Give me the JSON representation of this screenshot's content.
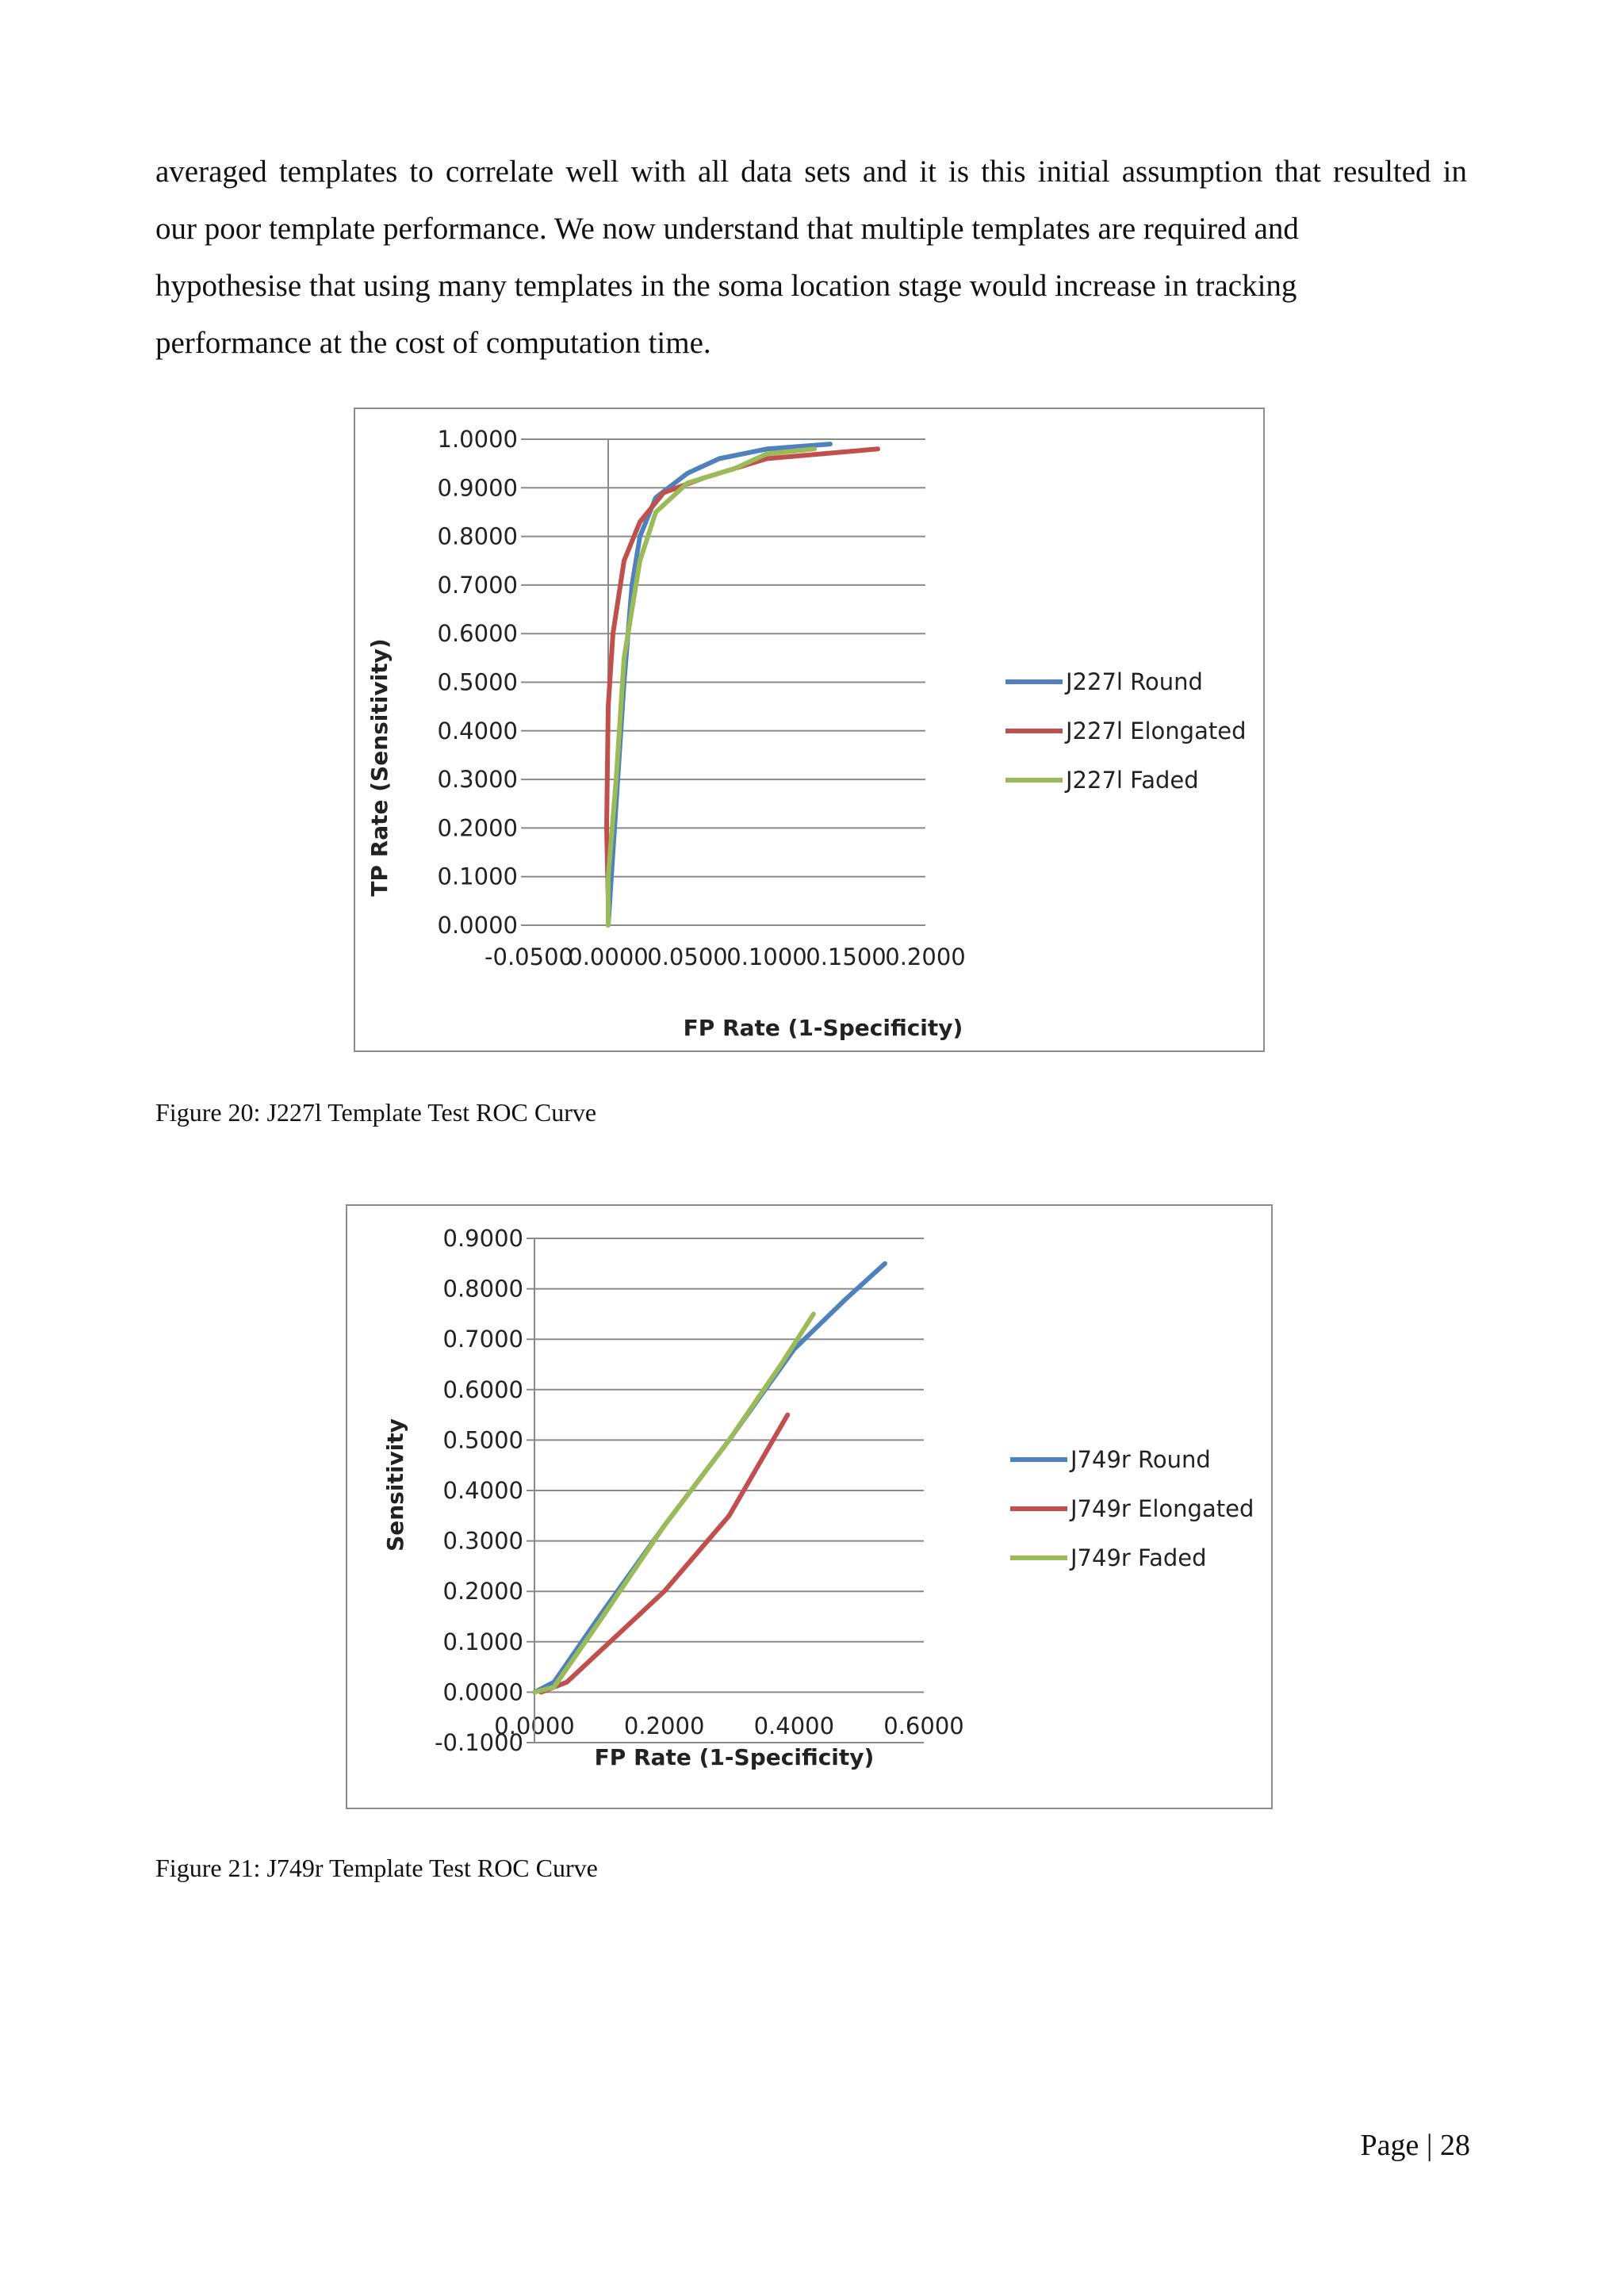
{
  "body_text": {
    "lines": [
      "averaged templates to correlate well with all data sets and it is this initial assumption that resulted in",
      "our poor template performance. We now understand that multiple templates are required and",
      "hypothesise that using many templates in the soma location stage would increase in tracking",
      "performance at the cost of computation time."
    ]
  },
  "figures": [
    {
      "caption": "Figure 20: J227l Template Test ROC Curve"
    },
    {
      "caption": "Figure 21: J749r Template Test ROC Curve"
    }
  ],
  "page_number": "Page | 28",
  "chart_data": [
    {
      "type": "line",
      "xlabel": "FP Rate (1-Specificity)",
      "ylabel": "TP Rate (Sensitivity)",
      "xlim": [
        -0.05,
        0.2
      ],
      "ylim": [
        0,
        1
      ],
      "xticks": [
        "-0.0500",
        "0.0000",
        "0.0500",
        "0.1000",
        "0.1500",
        "0.2000"
      ],
      "yticks": [
        "0.0000",
        "0.1000",
        "0.2000",
        "0.3000",
        "0.4000",
        "0.5000",
        "0.6000",
        "0.7000",
        "0.8000",
        "0.9000",
        "1.0000"
      ],
      "grid": "horizontal",
      "legend": "right",
      "series": [
        {
          "name": "J227l Round",
          "color": "#4f81bd",
          "points": [
            [
              0.0,
              0.0
            ],
            [
              0.005,
              0.25
            ],
            [
              0.01,
              0.5
            ],
            [
              0.015,
              0.7
            ],
            [
              0.02,
              0.8
            ],
            [
              0.03,
              0.88
            ],
            [
              0.05,
              0.93
            ],
            [
              0.07,
              0.96
            ],
            [
              0.1,
              0.98
            ],
            [
              0.14,
              0.99
            ]
          ]
        },
        {
          "name": "J227l Elongated",
          "color": "#c0504d",
          "points": [
            [
              0.0,
              0.05
            ],
            [
              -0.001,
              0.2
            ],
            [
              0.0,
              0.45
            ],
            [
              0.003,
              0.6
            ],
            [
              0.01,
              0.75
            ],
            [
              0.02,
              0.83
            ],
            [
              0.035,
              0.89
            ],
            [
              0.06,
              0.92
            ],
            [
              0.1,
              0.96
            ],
            [
              0.17,
              0.98
            ]
          ]
        },
        {
          "name": "J227l Faded",
          "color": "#9bbb59",
          "points": [
            [
              0.0,
              0.0
            ],
            [
              0.0,
              0.1
            ],
            [
              0.005,
              0.3
            ],
            [
              0.01,
              0.55
            ],
            [
              0.02,
              0.75
            ],
            [
              0.03,
              0.85
            ],
            [
              0.05,
              0.91
            ],
            [
              0.08,
              0.94
            ],
            [
              0.1,
              0.97
            ],
            [
              0.13,
              0.98
            ]
          ]
        }
      ]
    },
    {
      "type": "line",
      "xlabel": "FP Rate (1-Specificity)",
      "ylabel": "Sensitivity",
      "xlim": [
        0,
        0.6
      ],
      "ylim": [
        -0.1,
        0.9
      ],
      "xticks": [
        "0.0000",
        "0.2000",
        "0.4000",
        "0.6000"
      ],
      "yticks": [
        "-0.1000",
        "0.0000",
        "0.1000",
        "0.2000",
        "0.3000",
        "0.4000",
        "0.5000",
        "0.6000",
        "0.7000",
        "0.8000",
        "0.9000"
      ],
      "grid": "horizontal",
      "legend": "right",
      "series": [
        {
          "name": "J749r Round",
          "color": "#4f81bd",
          "points": [
            [
              0.0,
              0.0
            ],
            [
              0.03,
              0.02
            ],
            [
              0.1,
              0.15
            ],
            [
              0.2,
              0.33
            ],
            [
              0.3,
              0.5
            ],
            [
              0.4,
              0.68
            ],
            [
              0.48,
              0.78
            ],
            [
              0.54,
              0.85
            ]
          ]
        },
        {
          "name": "J749r Elongated",
          "color": "#c0504d",
          "points": [
            [
              0.01,
              0.0
            ],
            [
              0.05,
              0.02
            ],
            [
              0.1,
              0.08
            ],
            [
              0.2,
              0.2
            ],
            [
              0.3,
              0.35
            ],
            [
              0.39,
              0.55
            ]
          ]
        },
        {
          "name": "J749r Faded",
          "color": "#9bbb59",
          "points": [
            [
              0.0,
              0.0
            ],
            [
              0.03,
              0.01
            ],
            [
              0.1,
              0.14
            ],
            [
              0.2,
              0.33
            ],
            [
              0.3,
              0.5
            ],
            [
              0.38,
              0.65
            ],
            [
              0.43,
              0.75
            ]
          ]
        }
      ]
    }
  ]
}
